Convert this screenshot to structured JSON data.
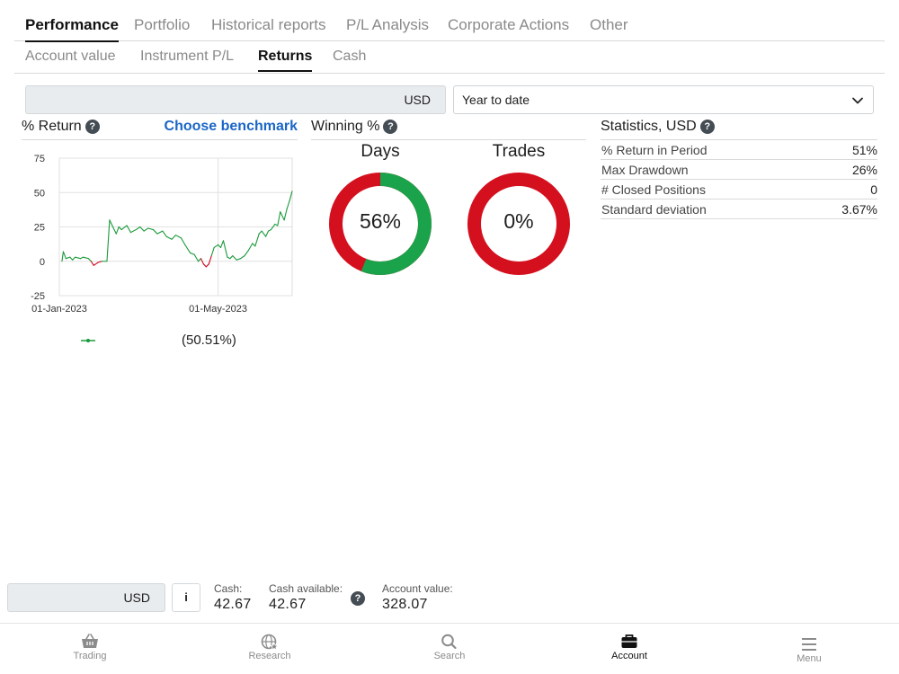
{
  "main_tabs": [
    "Performance",
    "Portfolio",
    "Historical reports",
    "P/L Analysis",
    "Corporate Actions",
    "Other"
  ],
  "sub_tabs": [
    "Account value",
    "Instrument P/L",
    "Returns",
    "Cash"
  ],
  "currency_selector": {
    "value": "USD"
  },
  "period_select": {
    "value": "Year to date"
  },
  "return_panel": {
    "title": "% Return",
    "help": "?",
    "benchmark_link": "Choose benchmark"
  },
  "winning_panel": {
    "title": "Winning %",
    "help": "?",
    "days": {
      "title": "Days",
      "label": "56%",
      "value": 56
    },
    "trades": {
      "title": "Trades",
      "label": "0%",
      "value": 0
    }
  },
  "stats_panel": {
    "title": "Statistics, USD",
    "help": "?",
    "rows": [
      {
        "label": "% Return in Period",
        "value": "51%"
      },
      {
        "label": "Max Drawdown",
        "value": "26%"
      },
      {
        "label": "# Closed Positions",
        "value": "0"
      },
      {
        "label": "Standard deviation",
        "value": "3.67%"
      }
    ]
  },
  "chart_data": {
    "type": "line",
    "title": "",
    "x_tick_labels": [
      "01-Jan-2023",
      "01-May-2023"
    ],
    "y_ticks": [
      75,
      50,
      25,
      0,
      -25
    ],
    "ylim": [
      -25,
      75
    ],
    "grid": true,
    "x_start": "2023-01-01",
    "x_end": "2023-06-26",
    "series": [
      {
        "legend_value": "(50.51%)",
        "color_positive": "#1a9a3a",
        "color_negative": "#d0021b",
        "points": [
          [
            "2023-01-03",
            0
          ],
          [
            "2023-01-04",
            7
          ],
          [
            "2023-01-06",
            2
          ],
          [
            "2023-01-09",
            3
          ],
          [
            "2023-01-11",
            1
          ],
          [
            "2023-01-13",
            3
          ],
          [
            "2023-01-17",
            2
          ],
          [
            "2023-01-19",
            3
          ],
          [
            "2023-01-23",
            2
          ],
          [
            "2023-01-25",
            0
          ],
          [
            "2023-01-27",
            -3
          ],
          [
            "2023-01-30",
            -1
          ],
          [
            "2023-02-02",
            0
          ],
          [
            "2023-02-06",
            0
          ],
          [
            "2023-02-08",
            30
          ],
          [
            "2023-02-10",
            26
          ],
          [
            "2023-02-13",
            20
          ],
          [
            "2023-02-15",
            25
          ],
          [
            "2023-02-17",
            23
          ],
          [
            "2023-02-21",
            26
          ],
          [
            "2023-02-24",
            21
          ],
          [
            "2023-02-28",
            23
          ],
          [
            "2023-03-03",
            25
          ],
          [
            "2023-03-06",
            22
          ],
          [
            "2023-03-09",
            24
          ],
          [
            "2023-03-13",
            23
          ],
          [
            "2023-03-16",
            20
          ],
          [
            "2023-03-20",
            22
          ],
          [
            "2023-03-23",
            18
          ],
          [
            "2023-03-27",
            16
          ],
          [
            "2023-03-30",
            19
          ],
          [
            "2023-04-03",
            17
          ],
          [
            "2023-04-06",
            12
          ],
          [
            "2023-04-10",
            6
          ],
          [
            "2023-04-13",
            5
          ],
          [
            "2023-04-16",
            0
          ],
          [
            "2023-04-18",
            2
          ],
          [
            "2023-04-20",
            -2
          ],
          [
            "2023-04-22",
            -4
          ],
          [
            "2023-04-24",
            -2
          ],
          [
            "2023-04-26",
            4
          ],
          [
            "2023-04-28",
            10
          ],
          [
            "2023-05-01",
            12
          ],
          [
            "2023-05-03",
            10
          ],
          [
            "2023-05-05",
            15
          ],
          [
            "2023-05-08",
            3
          ],
          [
            "2023-05-10",
            2
          ],
          [
            "2023-05-12",
            4
          ],
          [
            "2023-05-15",
            1
          ],
          [
            "2023-05-18",
            2
          ],
          [
            "2023-05-21",
            4
          ],
          [
            "2023-05-24",
            8
          ],
          [
            "2023-05-27",
            13
          ],
          [
            "2023-05-29",
            11
          ],
          [
            "2023-06-01",
            20
          ],
          [
            "2023-06-03",
            22
          ],
          [
            "2023-06-06",
            18
          ],
          [
            "2023-06-08",
            22
          ],
          [
            "2023-06-10",
            23
          ],
          [
            "2023-06-13",
            27
          ],
          [
            "2023-06-15",
            26
          ],
          [
            "2023-06-17",
            36
          ],
          [
            "2023-06-20",
            30
          ],
          [
            "2023-06-22",
            38
          ],
          [
            "2023-06-24",
            44
          ],
          [
            "2023-06-26",
            51
          ]
        ]
      }
    ]
  },
  "footer": {
    "currency": "USD",
    "info_icon": "i",
    "cash_label": "Cash:",
    "cash_value": "42.67",
    "cash_available_label": "Cash available:",
    "cash_available_value": "42.67",
    "help": "?",
    "account_value_label": "Account value:",
    "account_value": "328.07"
  },
  "bottom_nav": [
    {
      "label": "Trading",
      "icon": "basket-icon"
    },
    {
      "label": "Research",
      "icon": "globe-star-icon"
    },
    {
      "label": "Search",
      "icon": "search-icon"
    },
    {
      "label": "Account",
      "icon": "briefcase-icon",
      "active": true
    },
    {
      "label": "Menu",
      "icon": "menu-icon"
    }
  ],
  "colors": {
    "accent": "#1a66c6",
    "win": "#1aa34a",
    "loss": "#d4101e",
    "help_bg": "#444c54"
  }
}
